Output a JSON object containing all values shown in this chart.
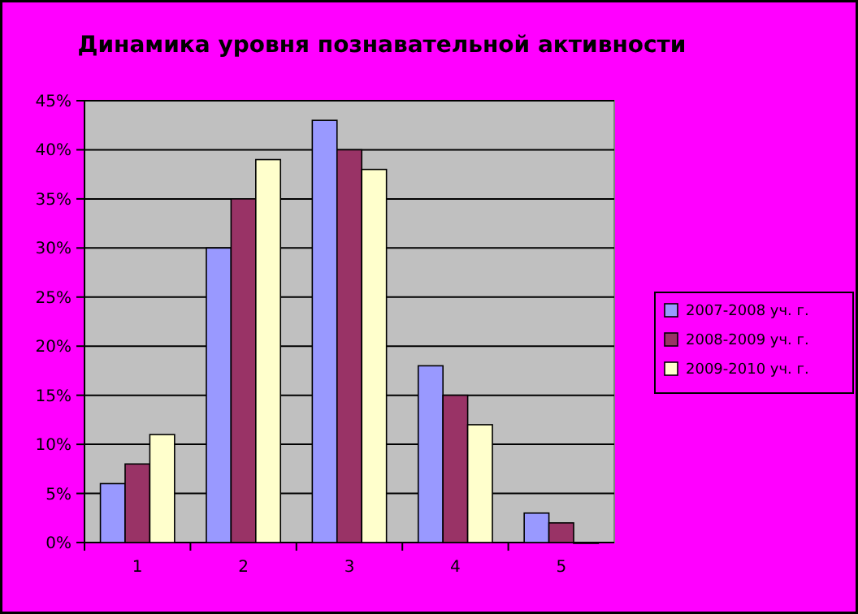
{
  "chart_data": {
    "type": "bar",
    "title": "Динамика уровня познавательной активности",
    "categories": [
      "1",
      "2",
      "3",
      "4",
      "5"
    ],
    "series": [
      {
        "name": "2007-2008 уч. г.",
        "color": "#9999ff",
        "values": [
          6,
          30,
          43,
          18,
          3
        ]
      },
      {
        "name": "2008-2009 уч. г.",
        "color": "#993366",
        "values": [
          8,
          35,
          40,
          15,
          2
        ]
      },
      {
        "name": "2009-2010 уч. г.",
        "color": "#ffffcc",
        "values": [
          11,
          39,
          38,
          12,
          0
        ]
      }
    ],
    "ylim": [
      0,
      45
    ],
    "yticks": [
      {
        "value": 0,
        "label": "0%"
      },
      {
        "value": 5,
        "label": "5%"
      },
      {
        "value": 10,
        "label": "10%"
      },
      {
        "value": 15,
        "label": "15%"
      },
      {
        "value": 20,
        "label": "20%"
      },
      {
        "value": 25,
        "label": "25%"
      },
      {
        "value": 30,
        "label": "30%"
      },
      {
        "value": 35,
        "label": "35%"
      },
      {
        "value": 40,
        "label": "40%"
      },
      {
        "value": 45,
        "label": "45%"
      }
    ],
    "grid": "y",
    "legend": "right"
  }
}
